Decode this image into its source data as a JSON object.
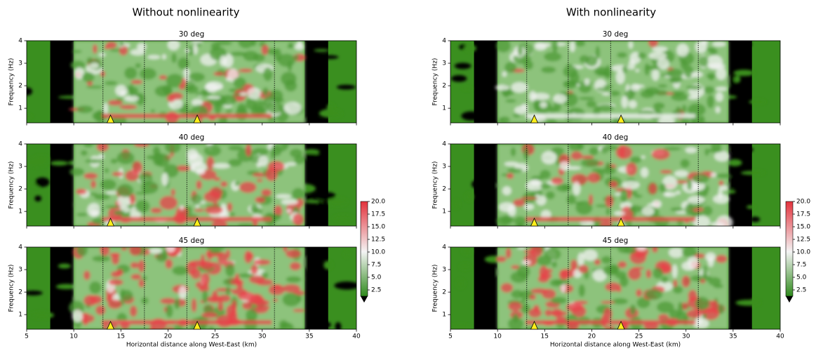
{
  "column_titles": [
    "Without nonlinearity",
    "With nonlinearity"
  ],
  "chart_data": [
    {
      "type": "heatmap",
      "title": "30 deg",
      "ylabel": "Frequency (Hz)",
      "xlim": [
        5,
        40
      ],
      "ylim": [
        0.35,
        4
      ],
      "xticks": [
        5,
        10,
        15,
        20,
        25,
        30,
        35,
        40
      ],
      "yticks": [
        1,
        2,
        3,
        4
      ],
      "stations": [
        13.9,
        23.1
      ],
      "dividers": [
        13.1,
        17.5,
        22,
        31.3
      ]
    },
    {
      "type": "heatmap",
      "title": "40 deg",
      "ylabel": "Frequency (Hz)",
      "xlim": [
        5,
        40
      ],
      "ylim": [
        0.35,
        4
      ],
      "xticks": [
        5,
        10,
        15,
        20,
        25,
        30,
        35,
        40
      ],
      "yticks": [
        1,
        2,
        3,
        4
      ],
      "stations": [
        13.9,
        23.1
      ],
      "dividers": [
        13.1,
        17.5,
        22,
        31.3
      ]
    },
    {
      "type": "heatmap",
      "title": "45 deg",
      "ylabel": "Frequency (Hz)",
      "xlabel": "Horizontal distance along West-East (km)",
      "xlim": [
        5,
        40
      ],
      "ylim": [
        0.35,
        4
      ],
      "xticks": [
        5,
        10,
        15,
        20,
        25,
        30,
        35,
        40
      ],
      "yticks": [
        1,
        2,
        3,
        4
      ],
      "stations": [
        13.9,
        23.1
      ],
      "dividers": [
        13.1,
        17.5,
        22,
        31.3
      ]
    },
    {
      "type": "heatmap",
      "title": "30 deg",
      "ylabel": "Frequency (Hz)",
      "xlim": [
        5,
        40
      ],
      "ylim": [
        0.35,
        4
      ],
      "xticks": [
        5,
        10,
        15,
        20,
        25,
        30,
        35,
        40
      ],
      "yticks": [
        1,
        2,
        3,
        4
      ],
      "stations": [
        13.9,
        23.1
      ],
      "dividers": [
        13.1,
        17.5,
        22,
        31.3
      ]
    },
    {
      "type": "heatmap",
      "title": "40 deg",
      "ylabel": "Frequency (Hz)",
      "xlim": [
        5,
        40
      ],
      "ylim": [
        0.35,
        4
      ],
      "xticks": [
        5,
        10,
        15,
        20,
        25,
        30,
        35,
        40
      ],
      "yticks": [
        1,
        2,
        3,
        4
      ],
      "stations": [
        13.9,
        23.1
      ],
      "dividers": [
        13.1,
        17.5,
        22,
        31.3
      ]
    },
    {
      "type": "heatmap",
      "title": "45 deg",
      "ylabel": "Frequency (Hz)",
      "xlabel": "Horizontal distance along West-East (km)",
      "xlim": [
        5,
        40
      ],
      "ylim": [
        0.35,
        4
      ],
      "xticks": [
        5,
        10,
        15,
        20,
        25,
        30,
        35,
        40
      ],
      "yticks": [
        1,
        2,
        3,
        4
      ],
      "stations": [
        13.9,
        23.1
      ],
      "dividers": [
        13.1,
        17.5,
        22,
        31.3
      ]
    },
    {
      "type": "colorbar",
      "ylim": [
        1.25,
        20
      ],
      "yticks": [
        {
          "value": 2.5,
          "label": "2.5"
        },
        {
          "value": 5,
          "label": "5.0"
        },
        {
          "value": 7.5,
          "label": "7.5"
        },
        {
          "value": 10,
          "label": "10.0"
        },
        {
          "value": 12.5,
          "label": "12.5"
        },
        {
          "value": 15,
          "label": "15.0"
        },
        {
          "value": 17.5,
          "label": "17.5"
        },
        {
          "value": 20,
          "label": "20.0"
        }
      ]
    },
    {
      "type": "colorbar",
      "ylim": [
        1.25,
        20
      ],
      "yticks": [
        {
          "value": 2.5,
          "label": "2.5"
        },
        {
          "value": 5,
          "label": "5.0"
        },
        {
          "value": 7.5,
          "label": "7.5"
        },
        {
          "value": 10,
          "label": "10.0"
        },
        {
          "value": 12.5,
          "label": "12.5"
        },
        {
          "value": 15,
          "label": "15.0"
        },
        {
          "value": 17.5,
          "label": "17.5"
        },
        {
          "value": 20,
          "label": "20.0"
        }
      ]
    }
  ]
}
